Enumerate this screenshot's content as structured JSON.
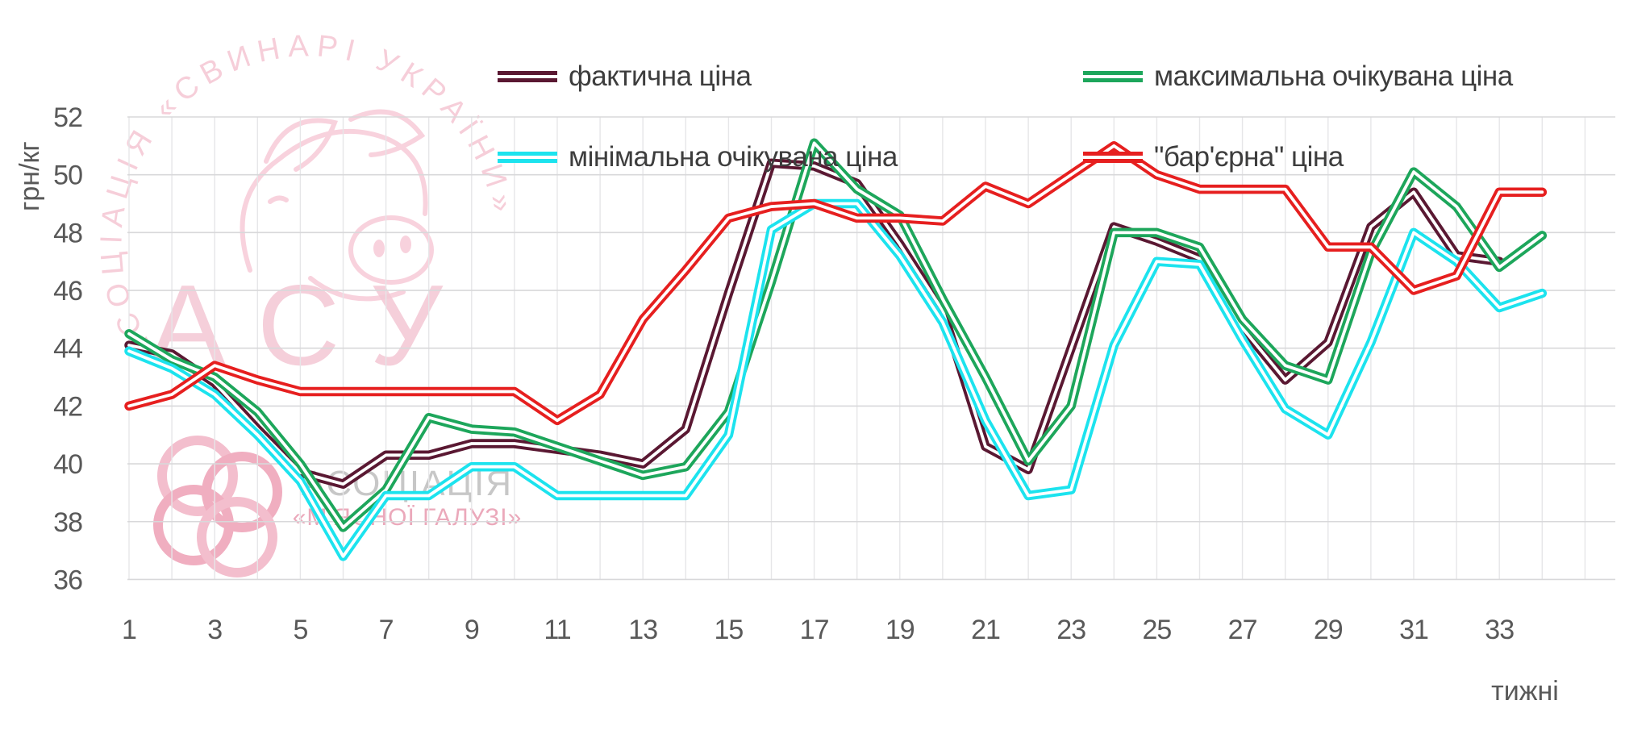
{
  "axes": {
    "y_label": "грн/кг",
    "x_label": "тижні"
  },
  "watermarks": {
    "ring_text": "АСОЦІАЦІЯ «СВИНАРІ УКРАЇНИ»",
    "acronym": "АСУ",
    "assoc_line1": "АСОЦІАЦІЯ",
    "assoc_line2": "«М'ЯСНОЇ ГАЛУЗІ»"
  },
  "chart_data": {
    "type": "line",
    "title": "",
    "xlabel": "тижні",
    "ylabel": "грн/кг",
    "ylim": [
      36,
      52
    ],
    "grid": true,
    "legend_position": "top",
    "x": [
      1,
      2,
      3,
      4,
      5,
      6,
      7,
      8,
      9,
      10,
      11,
      12,
      13,
      14,
      15,
      16,
      17,
      18,
      19,
      20,
      21,
      22,
      23,
      24,
      25,
      26,
      27,
      28,
      29,
      30,
      31,
      32,
      33,
      34
    ],
    "x_ticks": [
      1,
      3,
      5,
      7,
      9,
      11,
      13,
      15,
      17,
      19,
      21,
      23,
      25,
      27,
      29,
      31,
      33
    ],
    "y_ticks": [
      36,
      38,
      40,
      42,
      44,
      46,
      48,
      50,
      52
    ],
    "series": [
      {
        "key": "actual-price",
        "name": "фактична ціна",
        "color": "#5a1832",
        "values": [
          44.1,
          43.8,
          42.8,
          41.2,
          39.7,
          39.3,
          40.3,
          40.3,
          40.7,
          40.7,
          40.5,
          40.3,
          40.0,
          41.2,
          45.9,
          50.4,
          50.3,
          49.7,
          47.6,
          45.3,
          40.6,
          39.8,
          44.0,
          48.2,
          47.7,
          47.1,
          44.7,
          42.9,
          44.2,
          48.2,
          49.4,
          47.2,
          47.0,
          null
        ]
      },
      {
        "key": "max-expected-price",
        "name": "максимальна очікувана ціна",
        "color": "#1da65b",
        "values": [
          44.5,
          43.6,
          43.0,
          41.8,
          40.0,
          37.8,
          39.1,
          41.6,
          41.2,
          41.1,
          40.6,
          40.1,
          39.6,
          39.9,
          41.8,
          46.3,
          51.1,
          49.5,
          48.6,
          45.7,
          43.0,
          40.1,
          42.0,
          48.0,
          48.0,
          47.5,
          45.0,
          43.4,
          42.9,
          47.3,
          50.1,
          48.9,
          46.8,
          47.9
        ]
      },
      {
        "key": "min-expected-price",
        "name": "мінімальна очікувана ціна",
        "color": "#1ce3ee",
        "values": [
          43.9,
          43.3,
          42.4,
          41.0,
          39.4,
          36.8,
          38.9,
          38.9,
          39.9,
          39.9,
          38.9,
          38.9,
          38.9,
          38.9,
          41.0,
          48.1,
          49.0,
          49.0,
          47.2,
          44.9,
          41.5,
          38.9,
          39.1,
          44.1,
          47.0,
          46.9,
          44.3,
          41.9,
          41.0,
          44.2,
          48.0,
          47.0,
          45.4,
          45.9
        ]
      },
      {
        "key": "barrier-price",
        "name": "\"бар'єрна\" ціна",
        "color": "#e61f1f",
        "values": [
          42.0,
          42.4,
          43.4,
          42.9,
          42.5,
          42.5,
          42.5,
          42.5,
          42.5,
          42.5,
          41.5,
          42.4,
          45.0,
          46.7,
          48.5,
          48.9,
          49.0,
          48.5,
          48.5,
          48.4,
          49.6,
          49.0,
          50.0,
          51.0,
          50.0,
          49.5,
          49.5,
          49.5,
          47.5,
          47.5,
          46.0,
          46.5,
          49.4,
          49.4
        ]
      }
    ]
  }
}
